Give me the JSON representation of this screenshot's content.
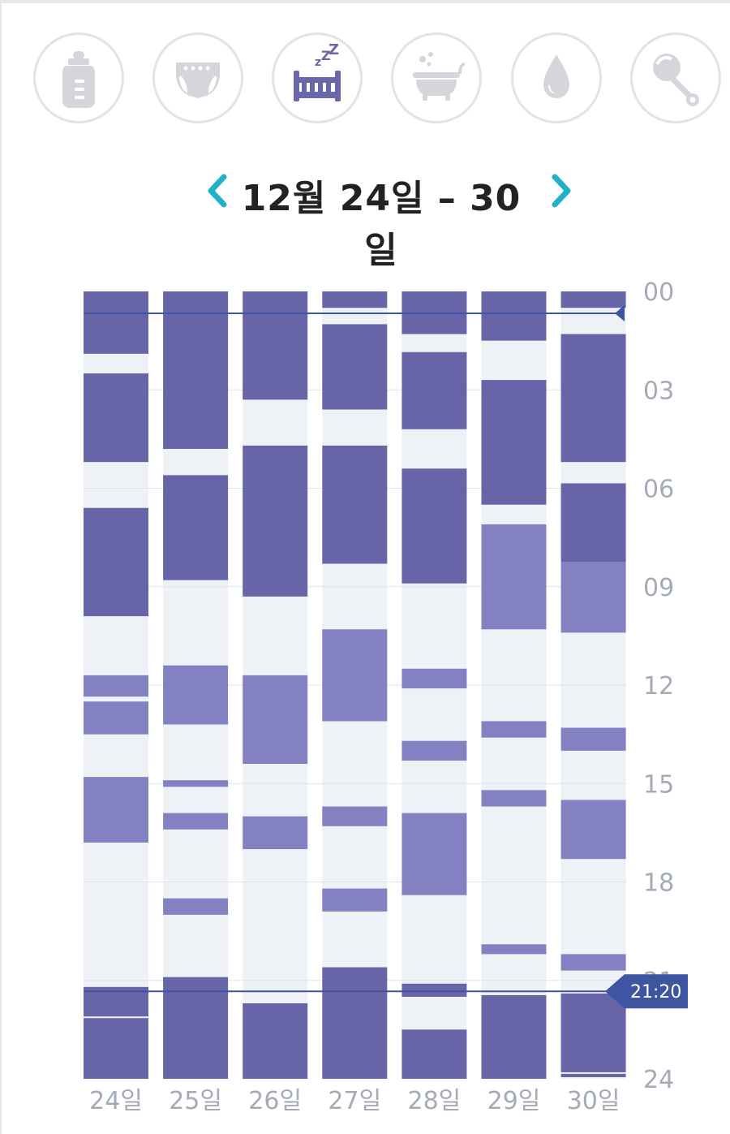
{
  "categories": [
    {
      "id": "feeding",
      "icon": "baby-bottle-icon",
      "active": false
    },
    {
      "id": "diaper",
      "icon": "diaper-icon",
      "active": false
    },
    {
      "id": "sleep",
      "icon": "sleep-crib-icon",
      "active": true
    },
    {
      "id": "bath",
      "icon": "bathtub-icon",
      "active": false
    },
    {
      "id": "medicine",
      "icon": "water-drop-icon",
      "active": false
    },
    {
      "id": "play",
      "icon": "rattle-icon",
      "active": false
    }
  ],
  "colors": {
    "active_icon": "#6a67a8",
    "inactive_icon": "#d4d6dc",
    "night_sleep": "#6765a8",
    "nap": "#8381c2",
    "column_bg": "#eef1f6",
    "gridline": "#dfe3ea",
    "now_line": "#3e55a1",
    "nav_arrow": "#22b0c6"
  },
  "date_nav": {
    "prev_icon": "chevron-left-icon",
    "title": "12월 24일 – 30일",
    "next_icon": "chevron-right-icon"
  },
  "chart_data": {
    "type": "bar",
    "orientation": "vertical-timeline",
    "categories": [
      "24일",
      "25일",
      "26일",
      "27일",
      "28일",
      "29일",
      "30일"
    ],
    "y_ticks": [
      "00",
      "03",
      "06",
      "09",
      "12",
      "15",
      "18",
      "21",
      "24"
    ],
    "ylim": [
      0,
      24
    ],
    "unit": "hours",
    "series": [
      {
        "kind": "night",
        "days": [
          [
            [
              0.0,
              1.9
            ],
            [
              2.5,
              5.2
            ],
            [
              6.6,
              9.9
            ],
            [
              21.2,
              22.1
            ],
            [
              22.15,
              24.0
            ]
          ],
          [
            [
              0.0,
              4.8
            ],
            [
              5.6,
              8.8
            ],
            [
              20.9,
              24.0
            ]
          ],
          [
            [
              0.0,
              3.3
            ],
            [
              4.7,
              9.3
            ],
            [
              21.7,
              24.0
            ]
          ],
          [
            [
              0.0,
              0.5
            ],
            [
              1.0,
              3.6
            ],
            [
              4.7,
              8.3
            ],
            [
              20.6,
              24.0
            ]
          ],
          [
            [
              0.0,
              1.3
            ],
            [
              1.85,
              4.2
            ],
            [
              5.4,
              8.9
            ],
            [
              21.1,
              21.5
            ],
            [
              22.5,
              24.0
            ]
          ],
          [
            [
              0.0,
              1.5
            ],
            [
              2.7,
              6.5
            ],
            [
              21.45,
              24.0
            ]
          ],
          [
            [
              0.0,
              0.5
            ],
            [
              1.3,
              5.2
            ],
            [
              5.85,
              8.25
            ],
            [
              21.4,
              23.8
            ],
            [
              23.85,
              23.95
            ],
            [
              24.0,
              24.0
            ]
          ]
        ]
      },
      {
        "kind": "nap",
        "days": [
          [
            [
              11.7,
              12.35
            ],
            [
              12.5,
              13.5
            ],
            [
              14.8,
              16.8
            ]
          ],
          [
            [
              11.4,
              13.2
            ],
            [
              14.9,
              15.1
            ],
            [
              15.9,
              16.4
            ],
            [
              18.5,
              19.0
            ]
          ],
          [
            [
              11.7,
              14.4
            ],
            [
              16.0,
              17.0
            ]
          ],
          [
            [
              10.3,
              13.1
            ],
            [
              15.7,
              16.3
            ],
            [
              18.2,
              18.9
            ]
          ],
          [
            [
              11.5,
              12.1
            ],
            [
              13.7,
              14.3
            ],
            [
              15.9,
              18.4
            ]
          ],
          [
            [
              7.1,
              10.3
            ],
            [
              13.1,
              13.6
            ],
            [
              15.2,
              15.7
            ],
            [
              19.9,
              20.2
            ]
          ],
          [
            [
              8.25,
              10.4
            ],
            [
              13.3,
              14.0
            ],
            [
              15.5,
              17.3
            ],
            [
              20.2,
              20.7
            ]
          ]
        ]
      }
    ],
    "current_time": {
      "label": "21:20",
      "value": 21.333
    },
    "midnight_line": 0.667,
    "grid": true
  }
}
